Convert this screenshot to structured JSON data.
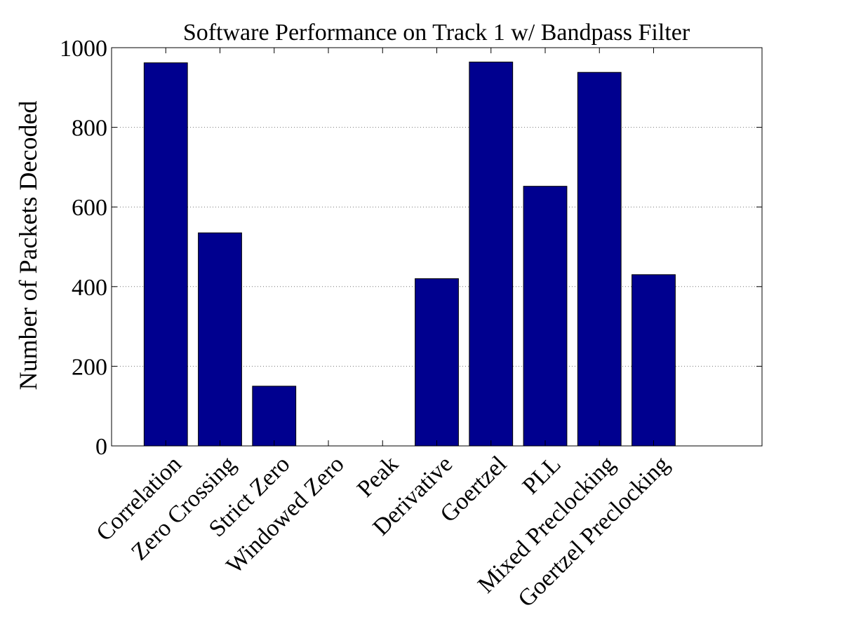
{
  "chart_data": {
    "type": "bar",
    "title": "Software Performance on Track 1 w/ Bandpass Filter",
    "xlabel": "",
    "ylabel": "Number of Packets Decoded",
    "categories": [
      "Correlation",
      "Zero Crossing",
      "Strict Zero",
      "Windowed Zero",
      "Peak",
      "Derivative",
      "Goertzel",
      "PLL",
      "Mixed Preclocking",
      "Goertzel Preclocking"
    ],
    "values": [
      962,
      535,
      150,
      0,
      0,
      420,
      964,
      652,
      938,
      430
    ],
    "ylim": [
      0,
      1000
    ],
    "yticks": [
      0,
      200,
      400,
      600,
      800,
      1000
    ],
    "xlim": [
      0,
      12
    ],
    "grid": true,
    "bar_color": "#00008f"
  }
}
